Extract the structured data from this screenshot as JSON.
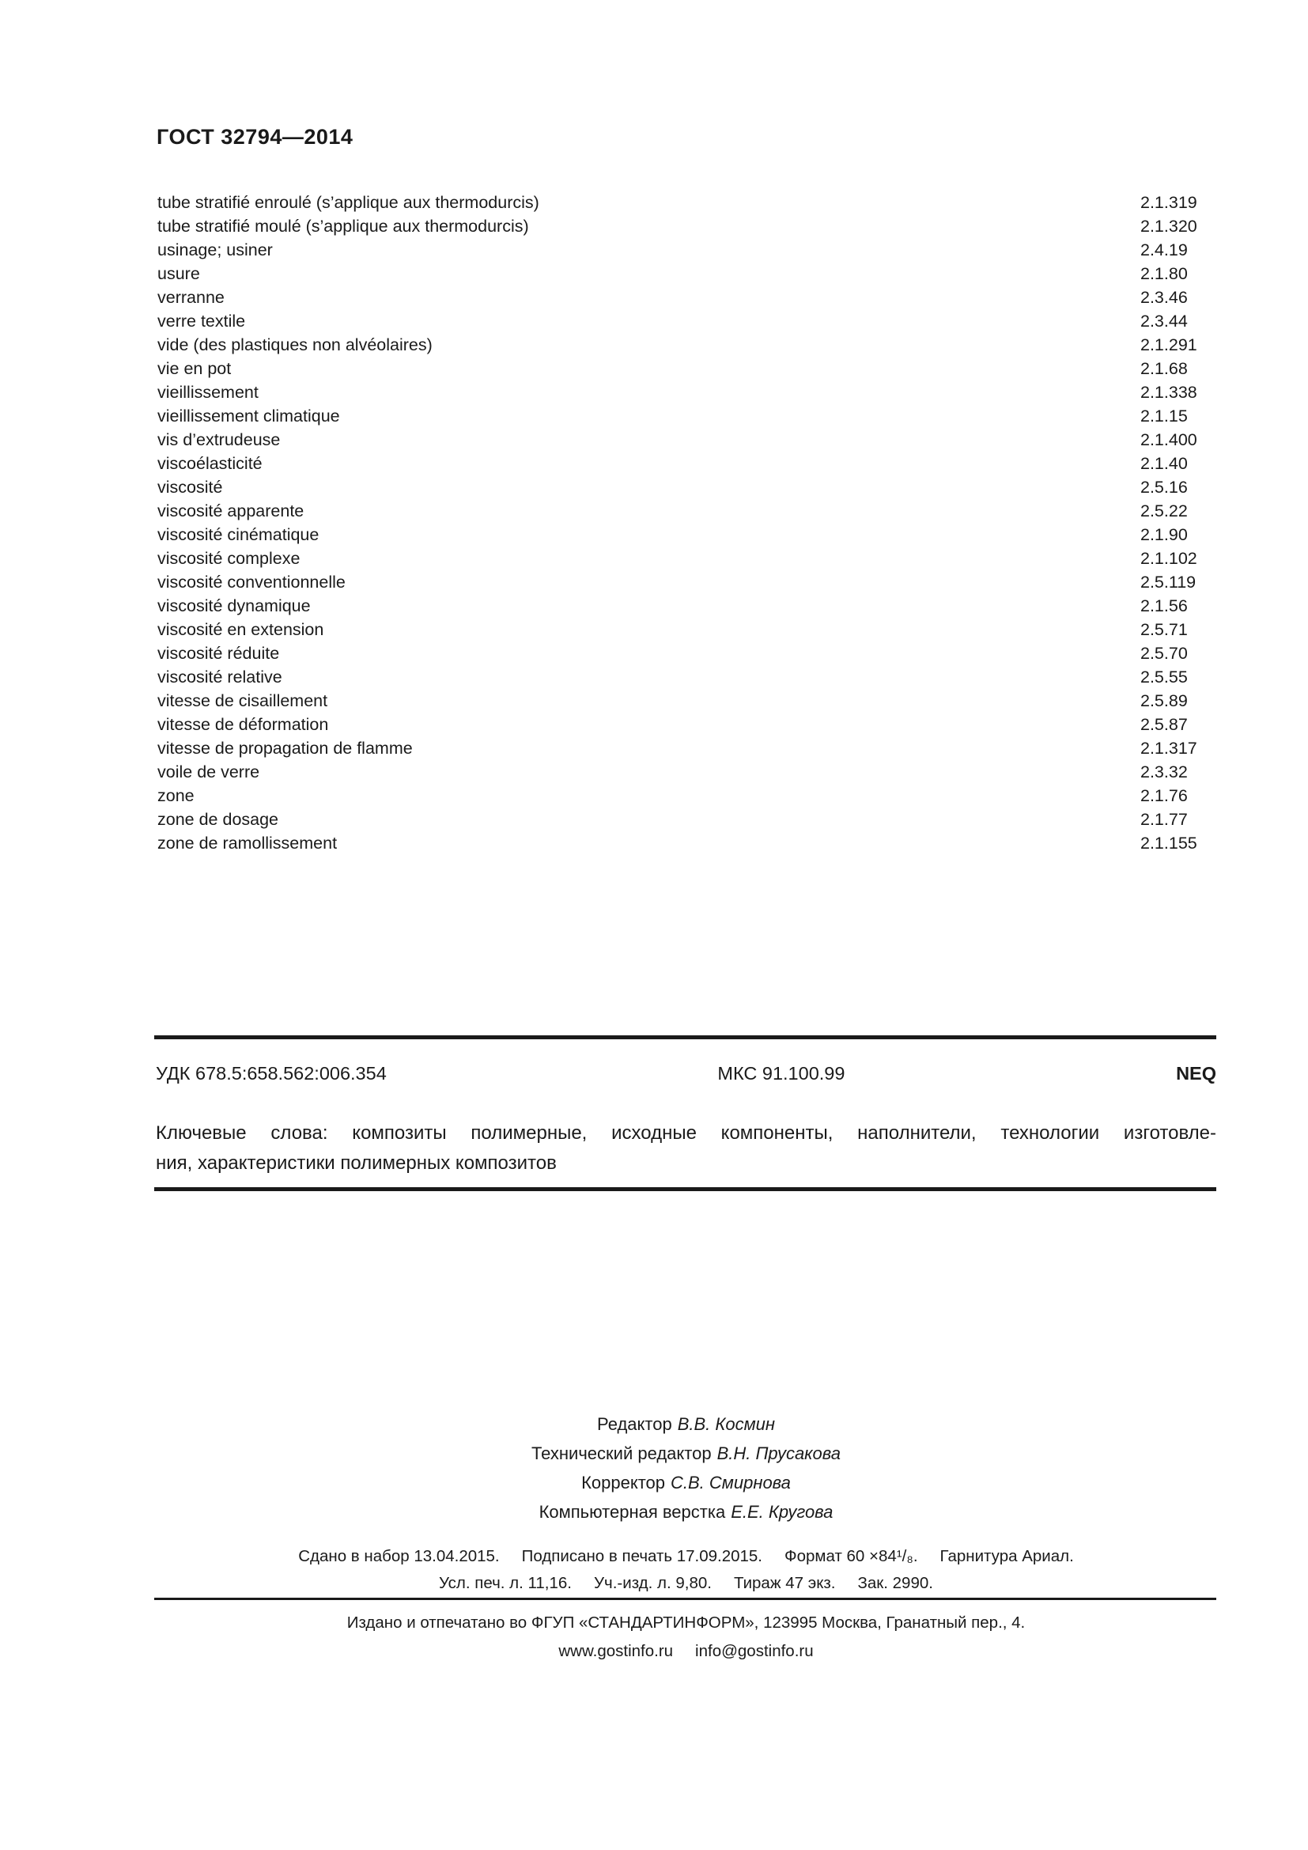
{
  "document": {
    "header": "ГОСТ 32794—2014"
  },
  "index": {
    "entries": [
      {
        "term": "tube stratifié enroulé (s’applique aux thermodurcis)",
        "ref": "2.1.319"
      },
      {
        "term": "tube stratifié moulé (s’applique aux thermodurcis)",
        "ref": "2.1.320"
      },
      {
        "term": "usinage; usiner",
        "ref": "2.4.19"
      },
      {
        "term": "usure",
        "ref": "2.1.80"
      },
      {
        "term": "verranne",
        "ref": "2.3.46"
      },
      {
        "term": "verre textile",
        "ref": "2.3.44"
      },
      {
        "term": "vide (des plastiques non alvéolaires)",
        "ref": "2.1.291"
      },
      {
        "term": "vie en pot",
        "ref": "2.1.68"
      },
      {
        "term": "vieillissement",
        "ref": "2.1.338"
      },
      {
        "term": "vieillissement climatique",
        "ref": "2.1.15"
      },
      {
        "term": "vis d’extrudeuse",
        "ref": "2.1.400"
      },
      {
        "term": "viscoélasticité",
        "ref": "2.1.40"
      },
      {
        "term": "viscosité",
        "ref": "2.5.16"
      },
      {
        "term": "viscosité apparente",
        "ref": "2.5.22"
      },
      {
        "term": "viscosité cinématique",
        "ref": "2.1.90"
      },
      {
        "term": "viscosité complexe",
        "ref": "2.1.102"
      },
      {
        "term": "viscosité conventionnelle",
        "ref": "2.5.119"
      },
      {
        "term": "viscosité dynamique",
        "ref": "2.1.56"
      },
      {
        "term": "viscosité en extension",
        "ref": "2.5.71"
      },
      {
        "term": "viscosité réduite",
        "ref": "2.5.70"
      },
      {
        "term": "viscosité relative",
        "ref": "2.5.55"
      },
      {
        "term": "vitesse de cisaillement",
        "ref": "2.5.89"
      },
      {
        "term": "vitesse de déformation",
        "ref": "2.5.87"
      },
      {
        "term": "vitesse de propagation de flamme",
        "ref": "2.1.317"
      },
      {
        "term": "voile de verre",
        "ref": "2.3.32"
      },
      {
        "term": "zone",
        "ref": "2.1.76"
      },
      {
        "term": "zone de dosage",
        "ref": "2.1.77"
      },
      {
        "term": "zone de ramollissement",
        "ref": "2.1.155"
      }
    ]
  },
  "classification": {
    "udk": "УДК 678.5:658.562:006.354",
    "mks": "МКС 91.100.99",
    "neq": "NEQ"
  },
  "keywords": {
    "line1": "Ключевые слова: композиты полимерные, исходные компоненты, наполнители, технологии изготовле-",
    "line2": "ния, характеристики полимерных композитов"
  },
  "credits": {
    "lines": [
      {
        "label": "Редактор",
        "name": "В.В. Космин"
      },
      {
        "label": "Технический редактор",
        "name": "В.Н. Прусакова"
      },
      {
        "label": "Корректор",
        "name": "С.В. Смирнова"
      },
      {
        "label": "Компьютерная верстка",
        "name": "Е.Е. Кругова"
      }
    ]
  },
  "imprint": {
    "line1_segments": [
      "Сдано в набор 13.04.2015.",
      "Подписано в печать 17.09.2015.",
      "Формат 60 ×84¹/₈.",
      "Гарнитура Ариал."
    ],
    "line2_segments": [
      "Усл. печ. л. 11,16.",
      "Уч.-изд. л. 9,80.",
      "Тираж 47 экз.",
      "Зак. 2990."
    ]
  },
  "publisher": {
    "address": "Издано и отпечатано во ФГУП «СТАНДАРТИНФОРМ», 123995 Москва, Гранатный пер., 4.",
    "contact_segments": [
      "www.gostinfo.ru",
      "info@gostinfo.ru"
    ]
  },
  "colors": {
    "text": "#1a1a1a",
    "rule": "#1a1a1a",
    "background": "#ffffff"
  }
}
